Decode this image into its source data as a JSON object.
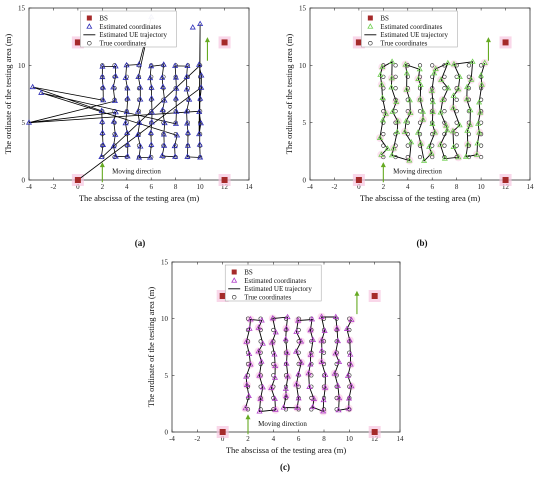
{
  "chart_data": [
    {
      "type": "scatter",
      "caption": "(a)",
      "xlabel": "The abscissa of the testing area (m)",
      "ylabel": "The ordinate of the testing area (m)",
      "xlim": [
        -4,
        14
      ],
      "ylim": [
        0,
        15
      ],
      "xticks": [
        "-4",
        "-2",
        "0",
        "2",
        "4",
        "6",
        "8",
        "10",
        "12",
        "14"
      ],
      "yticks": [
        "0",
        "5",
        "10",
        "15"
      ],
      "legend": [
        "BS",
        "Estimated coordinates",
        "Estimated UE trajectory",
        "True coordinates"
      ],
      "legend_position": "top",
      "annotation": "Moving direction",
      "estimate_color": "#2d2db8",
      "bs": [
        [
          0,
          0
        ],
        [
          12,
          0
        ],
        [
          0,
          12
        ],
        [
          12,
          12
        ]
      ],
      "outliers": [
        [
          -3.7,
          8.1
        ],
        [
          -4,
          5
        ],
        [
          6,
          14.2
        ],
        [
          10,
          13.6
        ],
        [
          2.6,
          13.3
        ],
        [
          9.4,
          13.3
        ],
        [
          -3,
          7.6
        ]
      ]
    },
    {
      "type": "scatter",
      "caption": "(b)",
      "xlabel": "The abscissa of the testing area (m)",
      "ylabel": "The ordinate of the testing area (m)",
      "xlim": [
        -4,
        14
      ],
      "ylim": [
        0,
        15
      ],
      "xticks": [
        "-4",
        "-2",
        "0",
        "2",
        "4",
        "6",
        "8",
        "10",
        "12",
        "14"
      ],
      "yticks": [
        "0",
        "5",
        "10",
        "15"
      ],
      "legend": [
        "BS",
        "Estimated coordinates",
        "Estimated UE trajectory",
        "True coordinates"
      ],
      "legend_position": "top",
      "annotation": "Moving direction",
      "estimate_color": "#6fcf4f",
      "bs": [
        [
          0,
          0
        ],
        [
          12,
          0
        ],
        [
          0,
          12
        ],
        [
          12,
          12
        ]
      ]
    },
    {
      "type": "scatter",
      "caption": "(c)",
      "xlabel": "The abscissa of the testing area (m)",
      "ylabel": "The ordinate of the testing area (m)",
      "xlim": [
        -4,
        14
      ],
      "ylim": [
        0,
        15
      ],
      "xticks": [
        "-4",
        "-2",
        "0",
        "2",
        "4",
        "6",
        "8",
        "10",
        "12",
        "14"
      ],
      "yticks": [
        "0",
        "5",
        "10",
        "15"
      ],
      "legend": [
        "BS",
        "Estimated coordinates",
        "Estimated UE trajectory",
        "True coordinates"
      ],
      "legend_position": "top",
      "annotation": "Moving direction",
      "estimate_color": "#b03cc8",
      "bs": [
        [
          0,
          0
        ],
        [
          12,
          0
        ],
        [
          0,
          12
        ],
        [
          12,
          12
        ]
      ]
    }
  ],
  "grid": {
    "x": [
      2,
      3,
      4,
      5,
      6,
      7,
      8,
      9,
      10
    ],
    "y": [
      2,
      3,
      4,
      5,
      6,
      7,
      8,
      9,
      10
    ]
  },
  "colors": {
    "bs": "#a52a2a",
    "arrow": "#66aa22",
    "halo": "#f7c6e0",
    "trajectory": "#000000"
  }
}
